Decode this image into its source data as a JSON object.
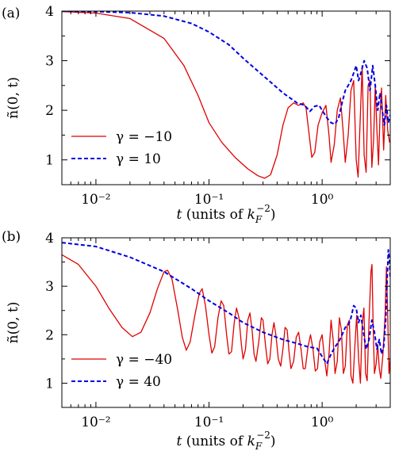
{
  "colors": {
    "series_neg": "#e00000",
    "series_pos": "#0000e0",
    "axis": "#000000",
    "background": "#ffffff"
  },
  "chart_data": [
    {
      "panel_label": "(a)",
      "type": "line",
      "xscale": "log",
      "xlabel": "t (units of kF⁻²)",
      "xlabel_main": "t",
      "xlabel_units_pre": "(units of ",
      "xlabel_units_sym": "k",
      "xlabel_units_sub": "F",
      "xlabel_units_sup": "−2",
      "xlabel_units_post": ")",
      "ylabel": "ñ(0, t)",
      "xlim": [
        0.005,
        4.0
      ],
      "ylim": [
        0.5,
        4.0
      ],
      "x_ticks": [
        0.01,
        0.1,
        1.0
      ],
      "x_tick_labels": [
        "10⁻²",
        "10⁻¹",
        "10⁰"
      ],
      "y_ticks": [
        1,
        2,
        3,
        4
      ],
      "y_tick_labels": [
        "1",
        "2",
        "3",
        "4"
      ],
      "legend_position": "bottom-left",
      "series": [
        {
          "name": "γ = −10",
          "style": "solid",
          "points": [
            [
              0.005,
              3.99
            ],
            [
              0.01,
              3.96
            ],
            [
              0.02,
              3.85
            ],
            [
              0.04,
              3.45
            ],
            [
              0.06,
              2.9
            ],
            [
              0.08,
              2.3
            ],
            [
              0.1,
              1.75
            ],
            [
              0.13,
              1.35
            ],
            [
              0.17,
              1.05
            ],
            [
              0.22,
              0.82
            ],
            [
              0.27,
              0.68
            ],
            [
              0.31,
              0.63
            ],
            [
              0.35,
              0.7
            ],
            [
              0.4,
              1.1
            ],
            [
              0.45,
              1.7
            ],
            [
              0.5,
              2.05
            ],
            [
              0.56,
              2.15
            ],
            [
              0.62,
              2.1
            ],
            [
              0.68,
              2.15
            ],
            [
              0.72,
              2.05
            ],
            [
              0.76,
              1.6
            ],
            [
              0.81,
              1.05
            ],
            [
              0.86,
              1.15
            ],
            [
              0.92,
              1.7
            ],
            [
              1.0,
              1.95
            ],
            [
              1.08,
              2.1
            ],
            [
              1.15,
              1.5
            ],
            [
              1.2,
              0.95
            ],
            [
              1.28,
              1.3
            ],
            [
              1.36,
              2.0
            ],
            [
              1.45,
              2.25
            ],
            [
              1.53,
              1.6
            ],
            [
              1.6,
              0.95
            ],
            [
              1.7,
              1.5
            ],
            [
              1.8,
              2.4
            ],
            [
              1.9,
              2.6
            ],
            [
              2.0,
              1.0
            ],
            [
              2.08,
              0.65
            ],
            [
              2.17,
              1.8
            ],
            [
              2.26,
              2.9
            ],
            [
              2.35,
              1.1
            ],
            [
              2.45,
              0.75
            ],
            [
              2.55,
              2.5
            ],
            [
              2.65,
              2.6
            ],
            [
              2.75,
              0.85
            ],
            [
              2.85,
              1.4
            ],
            [
              2.95,
              2.5
            ],
            [
              3.05,
              1.6
            ],
            [
              3.15,
              0.9
            ],
            [
              3.25,
              1.9
            ],
            [
              3.35,
              2.45
            ],
            [
              3.5,
              1.2
            ],
            [
              3.65,
              2.3
            ],
            [
              3.8,
              1.6
            ],
            [
              3.95,
              1.35
            ]
          ]
        },
        {
          "name": "γ = 10",
          "style": "dashed",
          "points": [
            [
              0.005,
              4.0
            ],
            [
              0.01,
              3.99
            ],
            [
              0.02,
              3.97
            ],
            [
              0.04,
              3.9
            ],
            [
              0.07,
              3.75
            ],
            [
              0.1,
              3.58
            ],
            [
              0.15,
              3.32
            ],
            [
              0.2,
              3.05
            ],
            [
              0.3,
              2.7
            ],
            [
              0.45,
              2.35
            ],
            [
              0.6,
              2.15
            ],
            [
              0.7,
              2.1
            ],
            [
              0.78,
              1.98
            ],
            [
              0.86,
              2.08
            ],
            [
              0.94,
              2.1
            ],
            [
              1.0,
              2.0
            ],
            [
              1.1,
              1.85
            ],
            [
              1.2,
              1.75
            ],
            [
              1.3,
              1.72
            ],
            [
              1.4,
              1.85
            ],
            [
              1.5,
              2.15
            ],
            [
              1.6,
              2.4
            ],
            [
              1.7,
              2.5
            ],
            [
              1.8,
              2.6
            ],
            [
              1.9,
              2.75
            ],
            [
              2.0,
              2.9
            ],
            [
              2.1,
              2.6
            ],
            [
              2.2,
              2.75
            ],
            [
              2.35,
              3.0
            ],
            [
              2.5,
              2.85
            ],
            [
              2.65,
              2.4
            ],
            [
              2.8,
              2.9
            ],
            [
              2.95,
              2.5
            ],
            [
              3.1,
              2.0
            ],
            [
              3.25,
              2.35
            ],
            [
              3.4,
              2.0
            ],
            [
              3.55,
              1.7
            ],
            [
              3.7,
              2.1
            ],
            [
              3.85,
              1.75
            ],
            [
              4.0,
              1.9
            ]
          ]
        }
      ]
    },
    {
      "panel_label": "(b)",
      "type": "line",
      "xscale": "log",
      "xlabel": "t (units of kF⁻²)",
      "xlabel_main": "t",
      "xlabel_units_pre": "(units of ",
      "xlabel_units_sym": "k",
      "xlabel_units_sub": "F",
      "xlabel_units_sup": "−2",
      "xlabel_units_post": ")",
      "ylabel": "ñ(0, t)",
      "xlim": [
        0.005,
        4.0
      ],
      "ylim": [
        0.5,
        4.0
      ],
      "x_ticks": [
        0.01,
        0.1,
        1.0
      ],
      "x_tick_labels": [
        "10⁻²",
        "10⁻¹",
        "10⁰"
      ],
      "y_ticks": [
        1,
        2,
        3,
        4
      ],
      "y_tick_labels": [
        "1",
        "2",
        "3",
        "4"
      ],
      "legend_position": "bottom-left",
      "series": [
        {
          "name": "γ = −40",
          "style": "solid",
          "points": [
            [
              0.005,
              3.65
            ],
            [
              0.007,
              3.45
            ],
            [
              0.01,
              3.0
            ],
            [
              0.013,
              2.55
            ],
            [
              0.017,
              2.15
            ],
            [
              0.021,
              1.96
            ],
            [
              0.025,
              2.05
            ],
            [
              0.03,
              2.45
            ],
            [
              0.035,
              2.95
            ],
            [
              0.04,
              3.3
            ],
            [
              0.043,
              3.33
            ],
            [
              0.047,
              3.15
            ],
            [
              0.053,
              2.5
            ],
            [
              0.058,
              1.95
            ],
            [
              0.063,
              1.68
            ],
            [
              0.068,
              1.85
            ],
            [
              0.075,
              2.4
            ],
            [
              0.082,
              2.85
            ],
            [
              0.087,
              2.95
            ],
            [
              0.093,
              2.6
            ],
            [
              0.1,
              2.0
            ],
            [
              0.106,
              1.62
            ],
            [
              0.112,
              1.75
            ],
            [
              0.12,
              2.35
            ],
            [
              0.128,
              2.7
            ],
            [
              0.135,
              2.6
            ],
            [
              0.143,
              2.0
            ],
            [
              0.15,
              1.6
            ],
            [
              0.158,
              1.65
            ],
            [
              0.167,
              2.25
            ],
            [
              0.175,
              2.55
            ],
            [
              0.184,
              2.35
            ],
            [
              0.193,
              1.8
            ],
            [
              0.2,
              1.5
            ],
            [
              0.21,
              1.7
            ],
            [
              0.22,
              2.3
            ],
            [
              0.23,
              2.45
            ],
            [
              0.24,
              2.1
            ],
            [
              0.25,
              1.6
            ],
            [
              0.26,
              1.45
            ],
            [
              0.275,
              1.85
            ],
            [
              0.29,
              2.35
            ],
            [
              0.3,
              2.3
            ],
            [
              0.315,
              1.8
            ],
            [
              0.33,
              1.4
            ],
            [
              0.345,
              1.5
            ],
            [
              0.36,
              2.0
            ],
            [
              0.375,
              2.25
            ],
            [
              0.39,
              2.0
            ],
            [
              0.41,
              1.5
            ],
            [
              0.43,
              1.35
            ],
            [
              0.45,
              1.7
            ],
            [
              0.47,
              2.15
            ],
            [
              0.49,
              2.1
            ],
            [
              0.51,
              1.65
            ],
            [
              0.53,
              1.3
            ],
            [
              0.56,
              1.45
            ],
            [
              0.59,
              1.95
            ],
            [
              0.62,
              2.05
            ],
            [
              0.65,
              1.7
            ],
            [
              0.68,
              1.3
            ],
            [
              0.71,
              1.3
            ],
            [
              0.75,
              1.75
            ],
            [
              0.79,
              2.0
            ],
            [
              0.83,
              1.7
            ],
            [
              0.87,
              1.25
            ],
            [
              0.91,
              1.3
            ],
            [
              0.95,
              1.85
            ],
            [
              1.0,
              2.0
            ],
            [
              1.05,
              1.5
            ],
            [
              1.1,
              1.15
            ],
            [
              1.15,
              1.6
            ],
            [
              1.2,
              2.3
            ],
            [
              1.25,
              1.9
            ],
            [
              1.3,
              1.2
            ],
            [
              1.36,
              1.45
            ],
            [
              1.42,
              2.35
            ],
            [
              1.48,
              2.1
            ],
            [
              1.54,
              1.2
            ],
            [
              1.6,
              1.35
            ],
            [
              1.67,
              2.2
            ],
            [
              1.74,
              2.3
            ],
            [
              1.8,
              1.15
            ],
            [
              1.87,
              1.0
            ],
            [
              1.95,
              1.8
            ],
            [
              2.02,
              2.4
            ],
            [
              2.1,
              1.5
            ],
            [
              2.18,
              1.0
            ],
            [
              2.26,
              2.2
            ],
            [
              2.34,
              2.55
            ],
            [
              2.42,
              1.2
            ],
            [
              2.5,
              1.05
            ],
            [
              2.6,
              2.3
            ],
            [
              2.7,
              3.3
            ],
            [
              2.76,
              3.45
            ],
            [
              2.82,
              2.2
            ],
            [
              2.9,
              1.2
            ],
            [
              3.0,
              1.4
            ],
            [
              3.1,
              1.8
            ],
            [
              3.2,
              1.3
            ],
            [
              3.3,
              1.1
            ],
            [
              3.45,
              1.6
            ],
            [
              3.6,
              2.4
            ],
            [
              3.7,
              3.4
            ],
            [
              3.8,
              2.4
            ],
            [
              3.9,
              1.2
            ],
            [
              4.0,
              1.5
            ]
          ]
        },
        {
          "name": "γ = 40",
          "style": "dashed",
          "points": [
            [
              0.005,
              3.9
            ],
            [
              0.01,
              3.82
            ],
            [
              0.02,
              3.6
            ],
            [
              0.04,
              3.3
            ],
            [
              0.07,
              2.95
            ],
            [
              0.1,
              2.7
            ],
            [
              0.15,
              2.45
            ],
            [
              0.2,
              2.25
            ],
            [
              0.3,
              2.05
            ],
            [
              0.45,
              1.9
            ],
            [
              0.6,
              1.82
            ],
            [
              0.75,
              1.75
            ],
            [
              0.9,
              1.72
            ],
            [
              1.0,
              1.55
            ],
            [
              1.1,
              1.4
            ],
            [
              1.2,
              1.6
            ],
            [
              1.3,
              1.75
            ],
            [
              1.4,
              1.85
            ],
            [
              1.5,
              2.0
            ],
            [
              1.6,
              2.15
            ],
            [
              1.7,
              2.2
            ],
            [
              1.8,
              2.35
            ],
            [
              1.9,
              2.6
            ],
            [
              2.0,
              2.55
            ],
            [
              2.1,
              2.25
            ],
            [
              2.2,
              2.4
            ],
            [
              2.3,
              2.1
            ],
            [
              2.45,
              1.7
            ],
            [
              2.6,
              1.9
            ],
            [
              2.75,
              2.3
            ],
            [
              2.9,
              2.05
            ],
            [
              3.05,
              1.7
            ],
            [
              3.2,
              1.9
            ],
            [
              3.35,
              1.6
            ],
            [
              3.5,
              1.75
            ],
            [
              3.65,
              2.3
            ],
            [
              3.75,
              3.1
            ],
            [
              3.85,
              3.75
            ],
            [
              3.95,
              3.5
            ],
            [
              4.0,
              3.2
            ]
          ]
        }
      ]
    }
  ]
}
